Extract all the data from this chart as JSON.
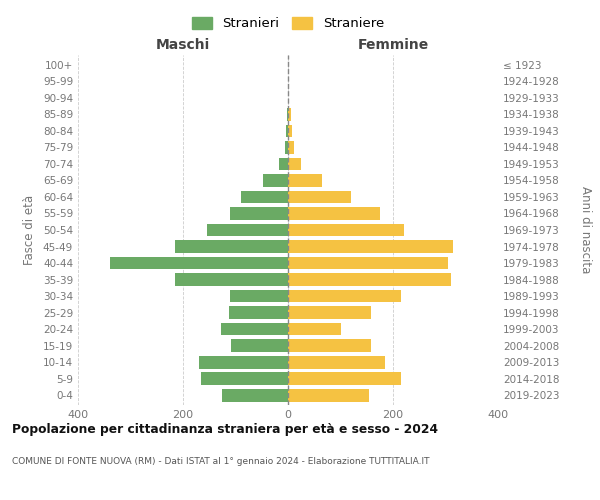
{
  "age_groups": [
    "0-4",
    "5-9",
    "10-14",
    "15-19",
    "20-24",
    "25-29",
    "30-34",
    "35-39",
    "40-44",
    "45-49",
    "50-54",
    "55-59",
    "60-64",
    "65-69",
    "70-74",
    "75-79",
    "80-84",
    "85-89",
    "90-94",
    "95-99",
    "100+"
  ],
  "birth_years": [
    "2019-2023",
    "2014-2018",
    "2009-2013",
    "2004-2008",
    "1999-2003",
    "1994-1998",
    "1989-1993",
    "1984-1988",
    "1979-1983",
    "1974-1978",
    "1969-1973",
    "1964-1968",
    "1959-1963",
    "1954-1958",
    "1949-1953",
    "1944-1948",
    "1939-1943",
    "1934-1938",
    "1929-1933",
    "1924-1928",
    "≤ 1923"
  ],
  "maschi": [
    125,
    165,
    170,
    108,
    128,
    112,
    110,
    215,
    340,
    215,
    155,
    110,
    90,
    48,
    18,
    5,
    3,
    2,
    0,
    0,
    0
  ],
  "femmine": [
    155,
    215,
    185,
    158,
    100,
    158,
    215,
    310,
    305,
    315,
    220,
    175,
    120,
    65,
    25,
    12,
    8,
    5,
    0,
    0,
    0
  ],
  "maschi_color": "#6aaa64",
  "femmine_color": "#f5c242",
  "center_line_color": "#888888",
  "grid_color": "#cccccc",
  "title": "Popolazione per cittadinanza straniera per età e sesso - 2024",
  "subtitle": "COMUNE DI FONTE NUOVA (RM) - Dati ISTAT al 1° gennaio 2024 - Elaborazione TUTTITALIA.IT",
  "ylabel_left": "Fasce di età",
  "ylabel_right": "Anni di nascita",
  "xlabel_left": "Maschi",
  "xlabel_right": "Femmine",
  "legend_stranieri": "Stranieri",
  "legend_straniere": "Straniere",
  "xlim": 400,
  "background_color": "#ffffff",
  "tick_color": "#777777",
  "title_color": "#111111",
  "subtitle_color": "#555555"
}
